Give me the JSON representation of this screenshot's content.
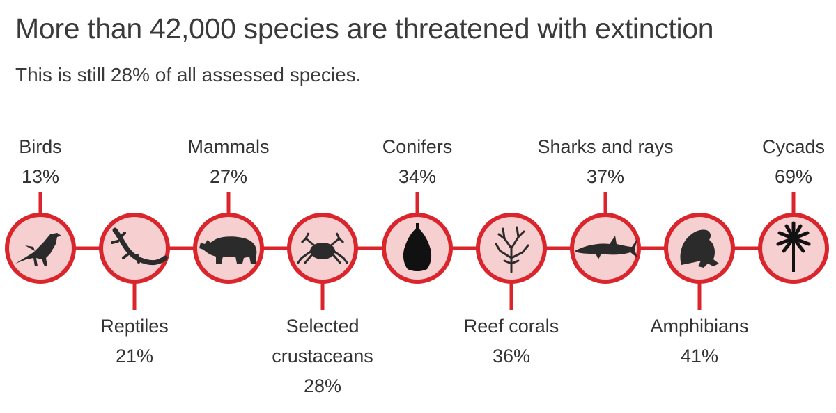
{
  "header": {
    "title": "More than 42,000 species are threatened with extinction",
    "subtitle": "This is still 28% of all assessed species."
  },
  "colors": {
    "ring": "#d9252b",
    "fill": "#f6cfd0",
    "icon": "#2b2b2b",
    "text": "#333333"
  },
  "groups": [
    {
      "name": "Birds",
      "percent": "13%",
      "icon": "bird-icon"
    },
    {
      "name": "Reptiles",
      "percent": "21%",
      "icon": "lizard-icon"
    },
    {
      "name": "Mammals",
      "percent": "27%",
      "icon": "rhino-icon"
    },
    {
      "name": "Selected",
      "name2": "crustaceans",
      "percent": "28%",
      "icon": "crab-icon"
    },
    {
      "name": "Conifers",
      "percent": "34%",
      "icon": "pinecone-icon"
    },
    {
      "name": "Reef corals",
      "percent": "36%",
      "icon": "coral-icon"
    },
    {
      "name": "Sharks and rays",
      "percent": "37%",
      "icon": "shark-icon"
    },
    {
      "name": "Amphibians",
      "percent": "41%",
      "icon": "frog-icon"
    },
    {
      "name": "Cycads",
      "percent": "69%",
      "icon": "palm-icon"
    }
  ]
}
